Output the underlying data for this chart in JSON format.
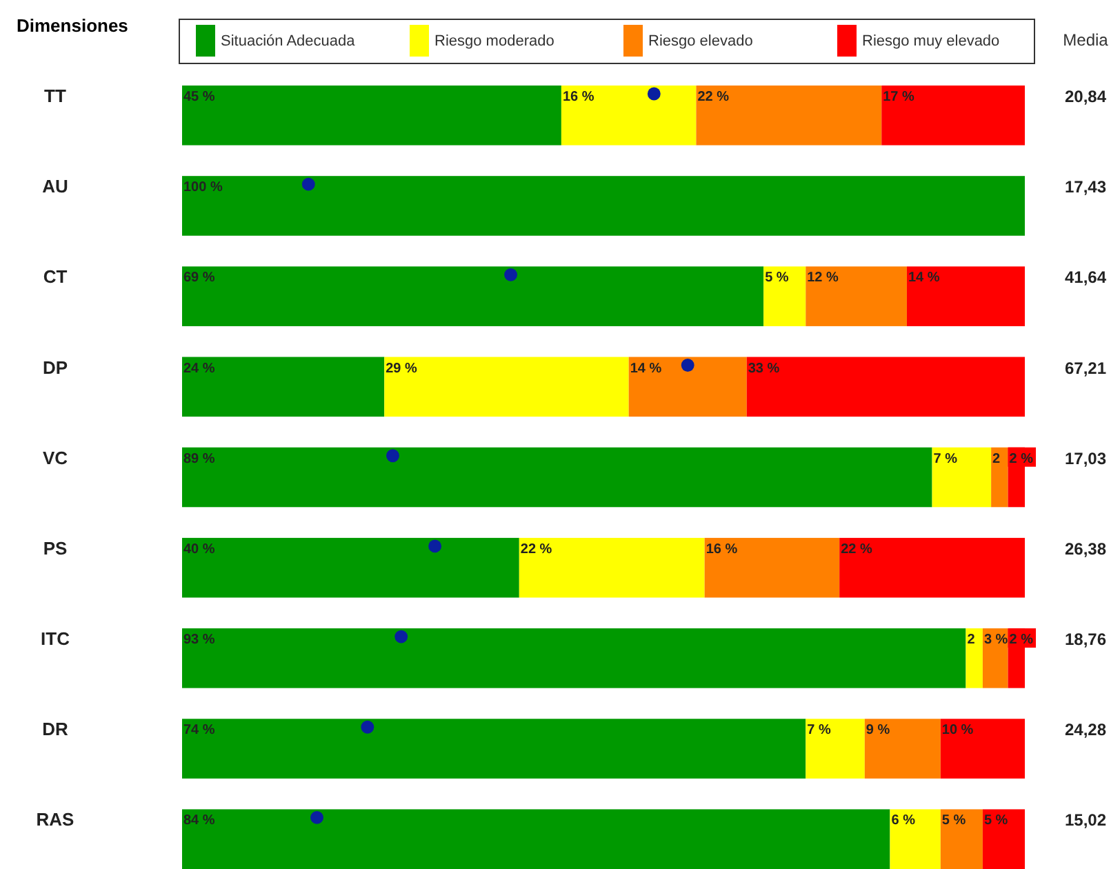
{
  "chart_data": {
    "type": "bar",
    "orientation": "horizontal",
    "stacked": true,
    "ylabel": "Dimensiones",
    "y2label": "Media",
    "categories": [
      "TT",
      "AU",
      "CT",
      "DP",
      "VC",
      "PS",
      "ITC",
      "DR",
      "RAS"
    ],
    "y2_categories": [
      "20,84",
      "17,43",
      "41,64",
      "67,21",
      "17,03",
      "26,38",
      "18,76",
      "24,28",
      "15,02"
    ],
    "xlim": [
      0,
      100
    ],
    "tick_labels": false,
    "grid": false,
    "legend": "top",
    "series": [
      {
        "name": "Situación Adecuada",
        "color": "#009900",
        "values": [
          45,
          100,
          69,
          24,
          89,
          40,
          93,
          74,
          84
        ],
        "value_labels": [
          "45 %",
          "100 %",
          "69 %",
          "24 %",
          "89 %",
          "40 %",
          "93 %",
          "74 %",
          "84 %"
        ]
      },
      {
        "name": "Riesgo moderado",
        "color": "#ffff00",
        "values": [
          16,
          0,
          5,
          29,
          7,
          22,
          2,
          7,
          6
        ],
        "value_labels": [
          "16 %",
          null,
          "5 %",
          "29 %",
          "7 %",
          "22 %",
          "2",
          "7 %",
          "6 %"
        ]
      },
      {
        "name": "Riesgo elevado",
        "color": "#ff8000",
        "values": [
          22,
          0,
          12,
          14,
          2,
          16,
          3,
          9,
          5
        ],
        "value_labels": [
          "22 %",
          null,
          "12 %",
          "14 %",
          "2",
          "16 %",
          "3 %",
          "9 %",
          "5 %"
        ]
      },
      {
        "name": "Riesgo muy elevado",
        "color": "#ff0000",
        "values": [
          17,
          0,
          14,
          33,
          2,
          22,
          2,
          10,
          5
        ],
        "value_labels": [
          "17 %",
          null,
          "14 %",
          "33 %",
          "2 %",
          "22 %",
          "2 %",
          "10 %",
          "5 %"
        ]
      },
      {
        "type": "scatter",
        "color": "#0a1fa0",
        "marker": "circle",
        "values": [
          56,
          15,
          39,
          60,
          25,
          30,
          26,
          22,
          16
        ]
      }
    ]
  }
}
